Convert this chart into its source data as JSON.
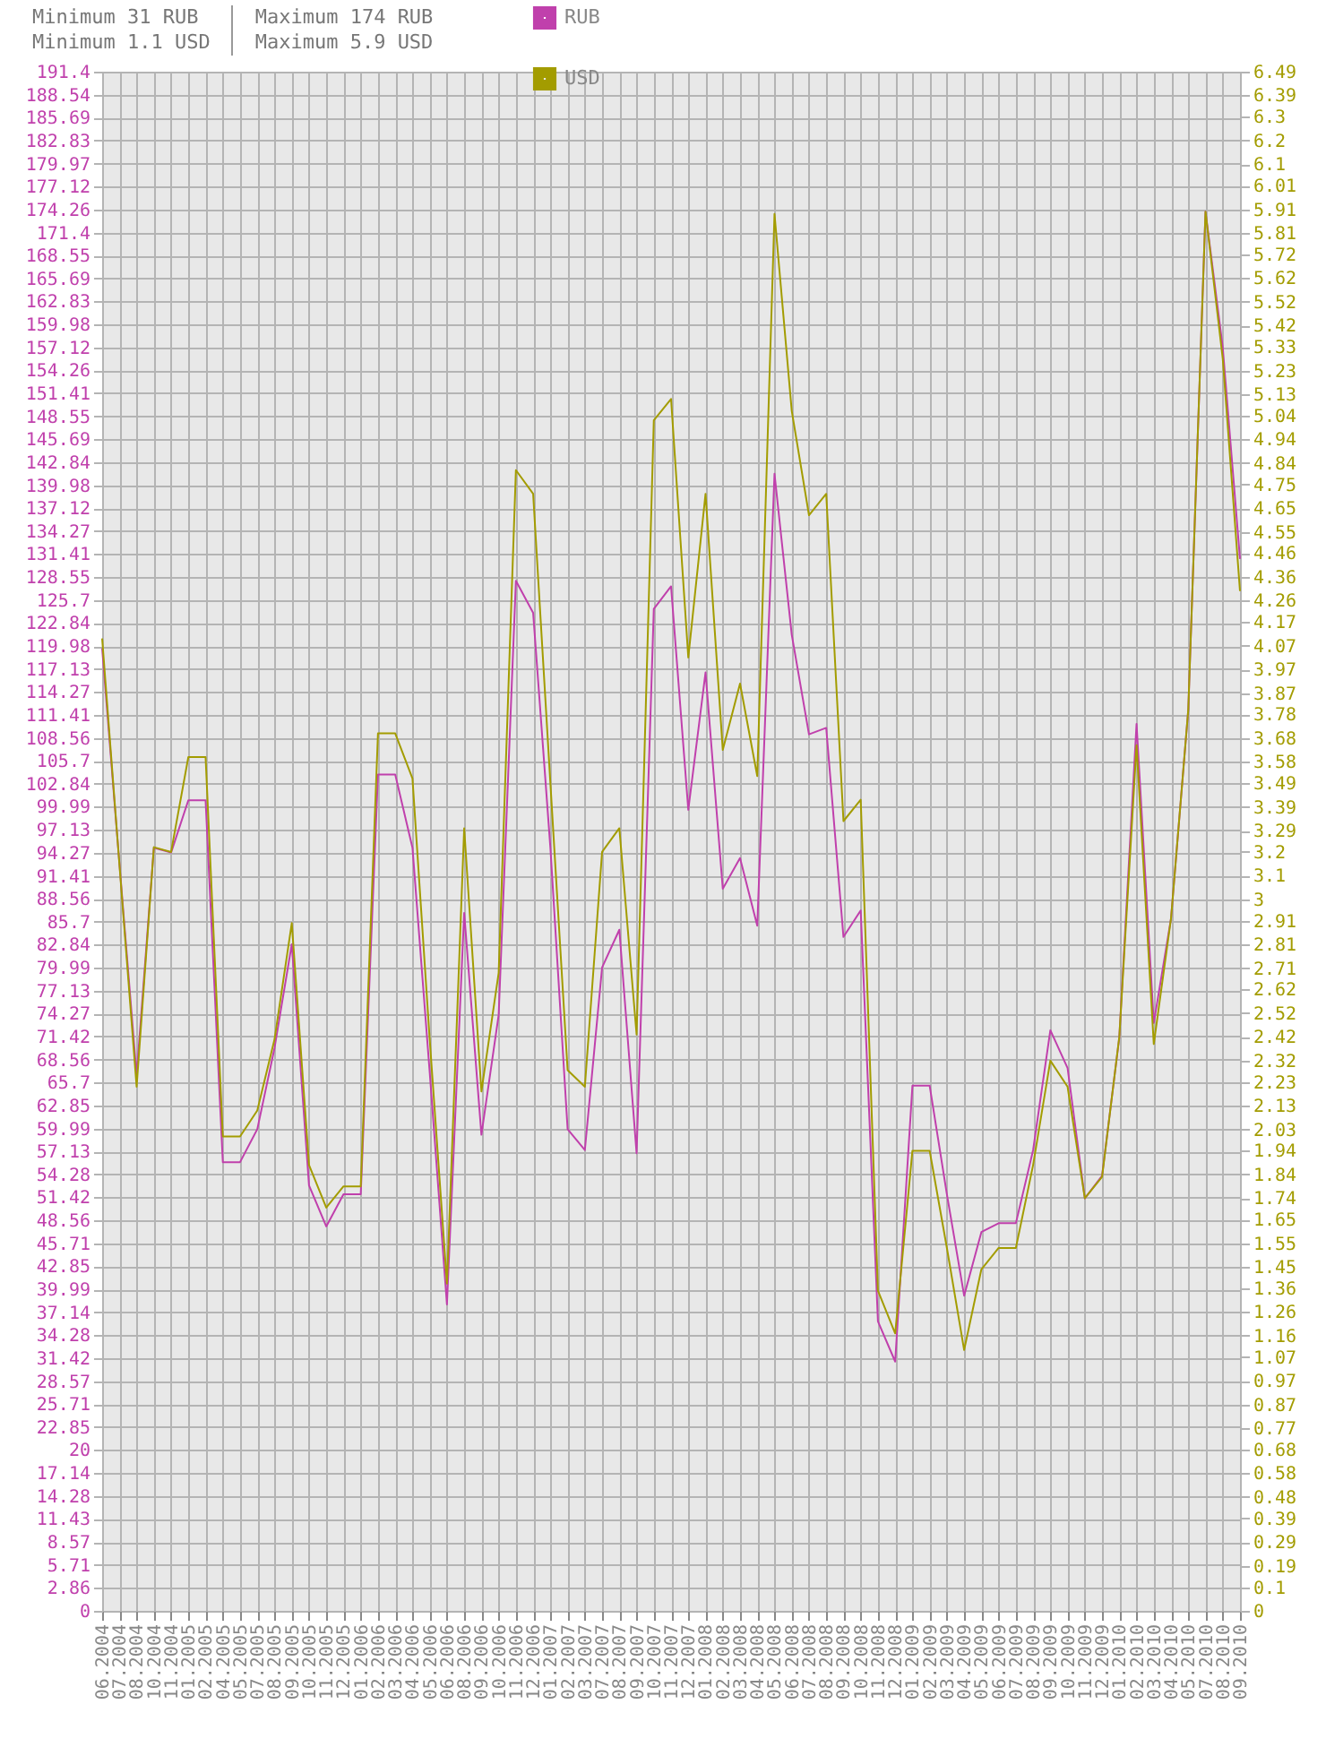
{
  "chart_data": {
    "type": "line",
    "annotations": [
      "Minimum 31 RUB",
      "Minimum 1.1 USD",
      "Maximum 174 RUB",
      "Maximum 5.9 USD"
    ],
    "categories": [
      "06.2004",
      "07.2004",
      "08.2004",
      "10.2004",
      "11.2004",
      "01.2005",
      "02.2005",
      "04.2005",
      "05.2005",
      "07.2005",
      "08.2005",
      "09.2005",
      "10.2005",
      "11.2005",
      "12.2005",
      "01.2006",
      "02.2006",
      "03.2006",
      "04.2006",
      "05.2006",
      "06.2006",
      "08.2006",
      "09.2006",
      "10.2006",
      "11.2006",
      "12.2006",
      "01.2007",
      "02.2007",
      "03.2007",
      "07.2007",
      "08.2007",
      "09.2007",
      "10.2007",
      "11.2007",
      "12.2007",
      "01.2008",
      "02.2008",
      "03.2008",
      "04.2008",
      "05.2008",
      "06.2008",
      "07.2008",
      "08.2008",
      "09.2008",
      "10.2008",
      "11.2008",
      "12.2008",
      "01.2009",
      "02.2009",
      "03.2009",
      "04.2009",
      "05.2009",
      "06.2009",
      "07.2009",
      "08.2009",
      "09.2009",
      "10.2009",
      "11.2009",
      "12.2009",
      "01.2010",
      "02.2010",
      "03.2010",
      "04.2010",
      "05.2010",
      "07.2010",
      "08.2010",
      "09.2010"
    ],
    "series": [
      {
        "name": "RUB",
        "color": "#c040ac",
        "values": [
          119.7,
          93,
          66.6,
          94.9,
          94.3,
          100.8,
          100.8,
          55.8,
          55.8,
          59.9,
          70,
          82.9,
          52.9,
          47.8,
          51.8,
          51.8,
          104,
          104,
          94.9,
          67,
          38.1,
          86.8,
          59.2,
          74.1,
          128.1,
          124.1,
          94.9,
          59.9,
          57.3,
          80,
          84.7,
          56.9,
          124.6,
          127.4,
          99.6,
          116.7,
          89.8,
          93.6,
          85.2,
          141.4,
          121.4,
          109,
          109.8,
          83.8,
          87.1,
          36,
          31,
          65.3,
          65.3,
          51.8,
          39.2,
          47.1,
          48.2,
          48.2,
          57.3,
          72.2,
          67.5,
          51.3,
          54.1,
          71.3,
          110.3,
          73.1,
          86.1,
          112,
          174,
          157.1,
          130.8
        ]
      },
      {
        "name": "USD",
        "color": "#a39c00",
        "axis": "y2",
        "values": [
          4.1,
          3.15,
          2.21,
          3.22,
          3.2,
          3.6,
          3.6,
          2,
          2,
          2.11,
          2.41,
          2.9,
          1.88,
          1.7,
          1.79,
          1.79,
          3.7,
          3.7,
          3.51,
          2.41,
          1.38,
          3.3,
          2.19,
          2.69,
          4.81,
          4.71,
          3.49,
          2.28,
          2.21,
          3.2,
          3.3,
          2.43,
          5.02,
          5.11,
          4.02,
          4.71,
          3.63,
          3.91,
          3.52,
          5.89,
          5.06,
          4.62,
          4.71,
          3.33,
          3.42,
          1.35,
          1.17,
          1.94,
          1.94,
          1.53,
          1.1,
          1.44,
          1.53,
          1.53,
          1.88,
          2.32,
          2.21,
          1.74,
          1.83,
          2.42,
          3.65,
          2.39,
          2.92,
          3.8,
          5.9,
          5.28,
          4.3
        ]
      }
    ],
    "ylim": [
      0,
      191.4
    ],
    "yticks": [
      0,
      2.86,
      5.71,
      8.57,
      11.43,
      14.28,
      17.14,
      20,
      22.85,
      25.71,
      28.57,
      31.42,
      34.28,
      37.14,
      39.99,
      42.85,
      45.71,
      48.56,
      51.42,
      54.28,
      57.13,
      59.99,
      62.85,
      65.7,
      68.56,
      71.42,
      74.27,
      77.13,
      79.99,
      82.84,
      85.7,
      88.56,
      91.41,
      94.27,
      97.13,
      99.99,
      102.84,
      105.7,
      108.56,
      111.41,
      114.27,
      117.13,
      119.98,
      122.84,
      125.7,
      128.55,
      131.41,
      134.27,
      137.12,
      139.98,
      142.84,
      145.69,
      148.55,
      151.41,
      154.26,
      157.12,
      159.98,
      162.83,
      165.69,
      168.55,
      171.4,
      174.26,
      177.12,
      179.97,
      182.83,
      185.69,
      188.54,
      191.4
    ],
    "y2lim": [
      0,
      6.49
    ],
    "y2ticks": [
      0,
      0.1,
      0.19,
      0.29,
      0.39,
      0.48,
      0.58,
      0.68,
      0.77,
      0.87,
      0.97,
      1.07,
      1.16,
      1.26,
      1.36,
      1.45,
      1.55,
      1.65,
      1.74,
      1.84,
      1.94,
      2.03,
      2.13,
      2.23,
      2.32,
      2.42,
      2.52,
      2.62,
      2.71,
      2.81,
      2.91,
      3,
      3.1,
      3.2,
      3.29,
      3.39,
      3.49,
      3.58,
      3.68,
      3.78,
      3.87,
      3.97,
      4.07,
      4.17,
      4.26,
      4.36,
      4.46,
      4.55,
      4.65,
      4.75,
      4.84,
      4.94,
      5.04,
      5.13,
      5.23,
      5.33,
      5.42,
      5.52,
      5.62,
      5.72,
      5.81,
      5.91,
      6.01,
      6.1,
      6.2,
      6.3,
      6.39,
      6.49
    ],
    "grid": true,
    "legend": "top left",
    "marker": "none",
    "line_style": "solid"
  }
}
